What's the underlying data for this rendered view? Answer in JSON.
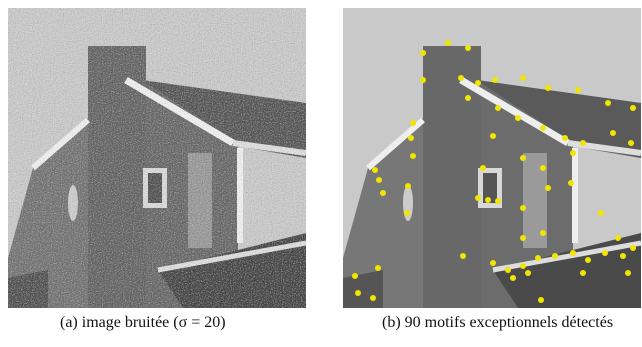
{
  "figure": {
    "subfigures": [
      {
        "caption": "(a) image bruitée (σ = 20)"
      },
      {
        "caption": "(b) 90 motifs exceptionnels détectés"
      }
    ]
  }
}
